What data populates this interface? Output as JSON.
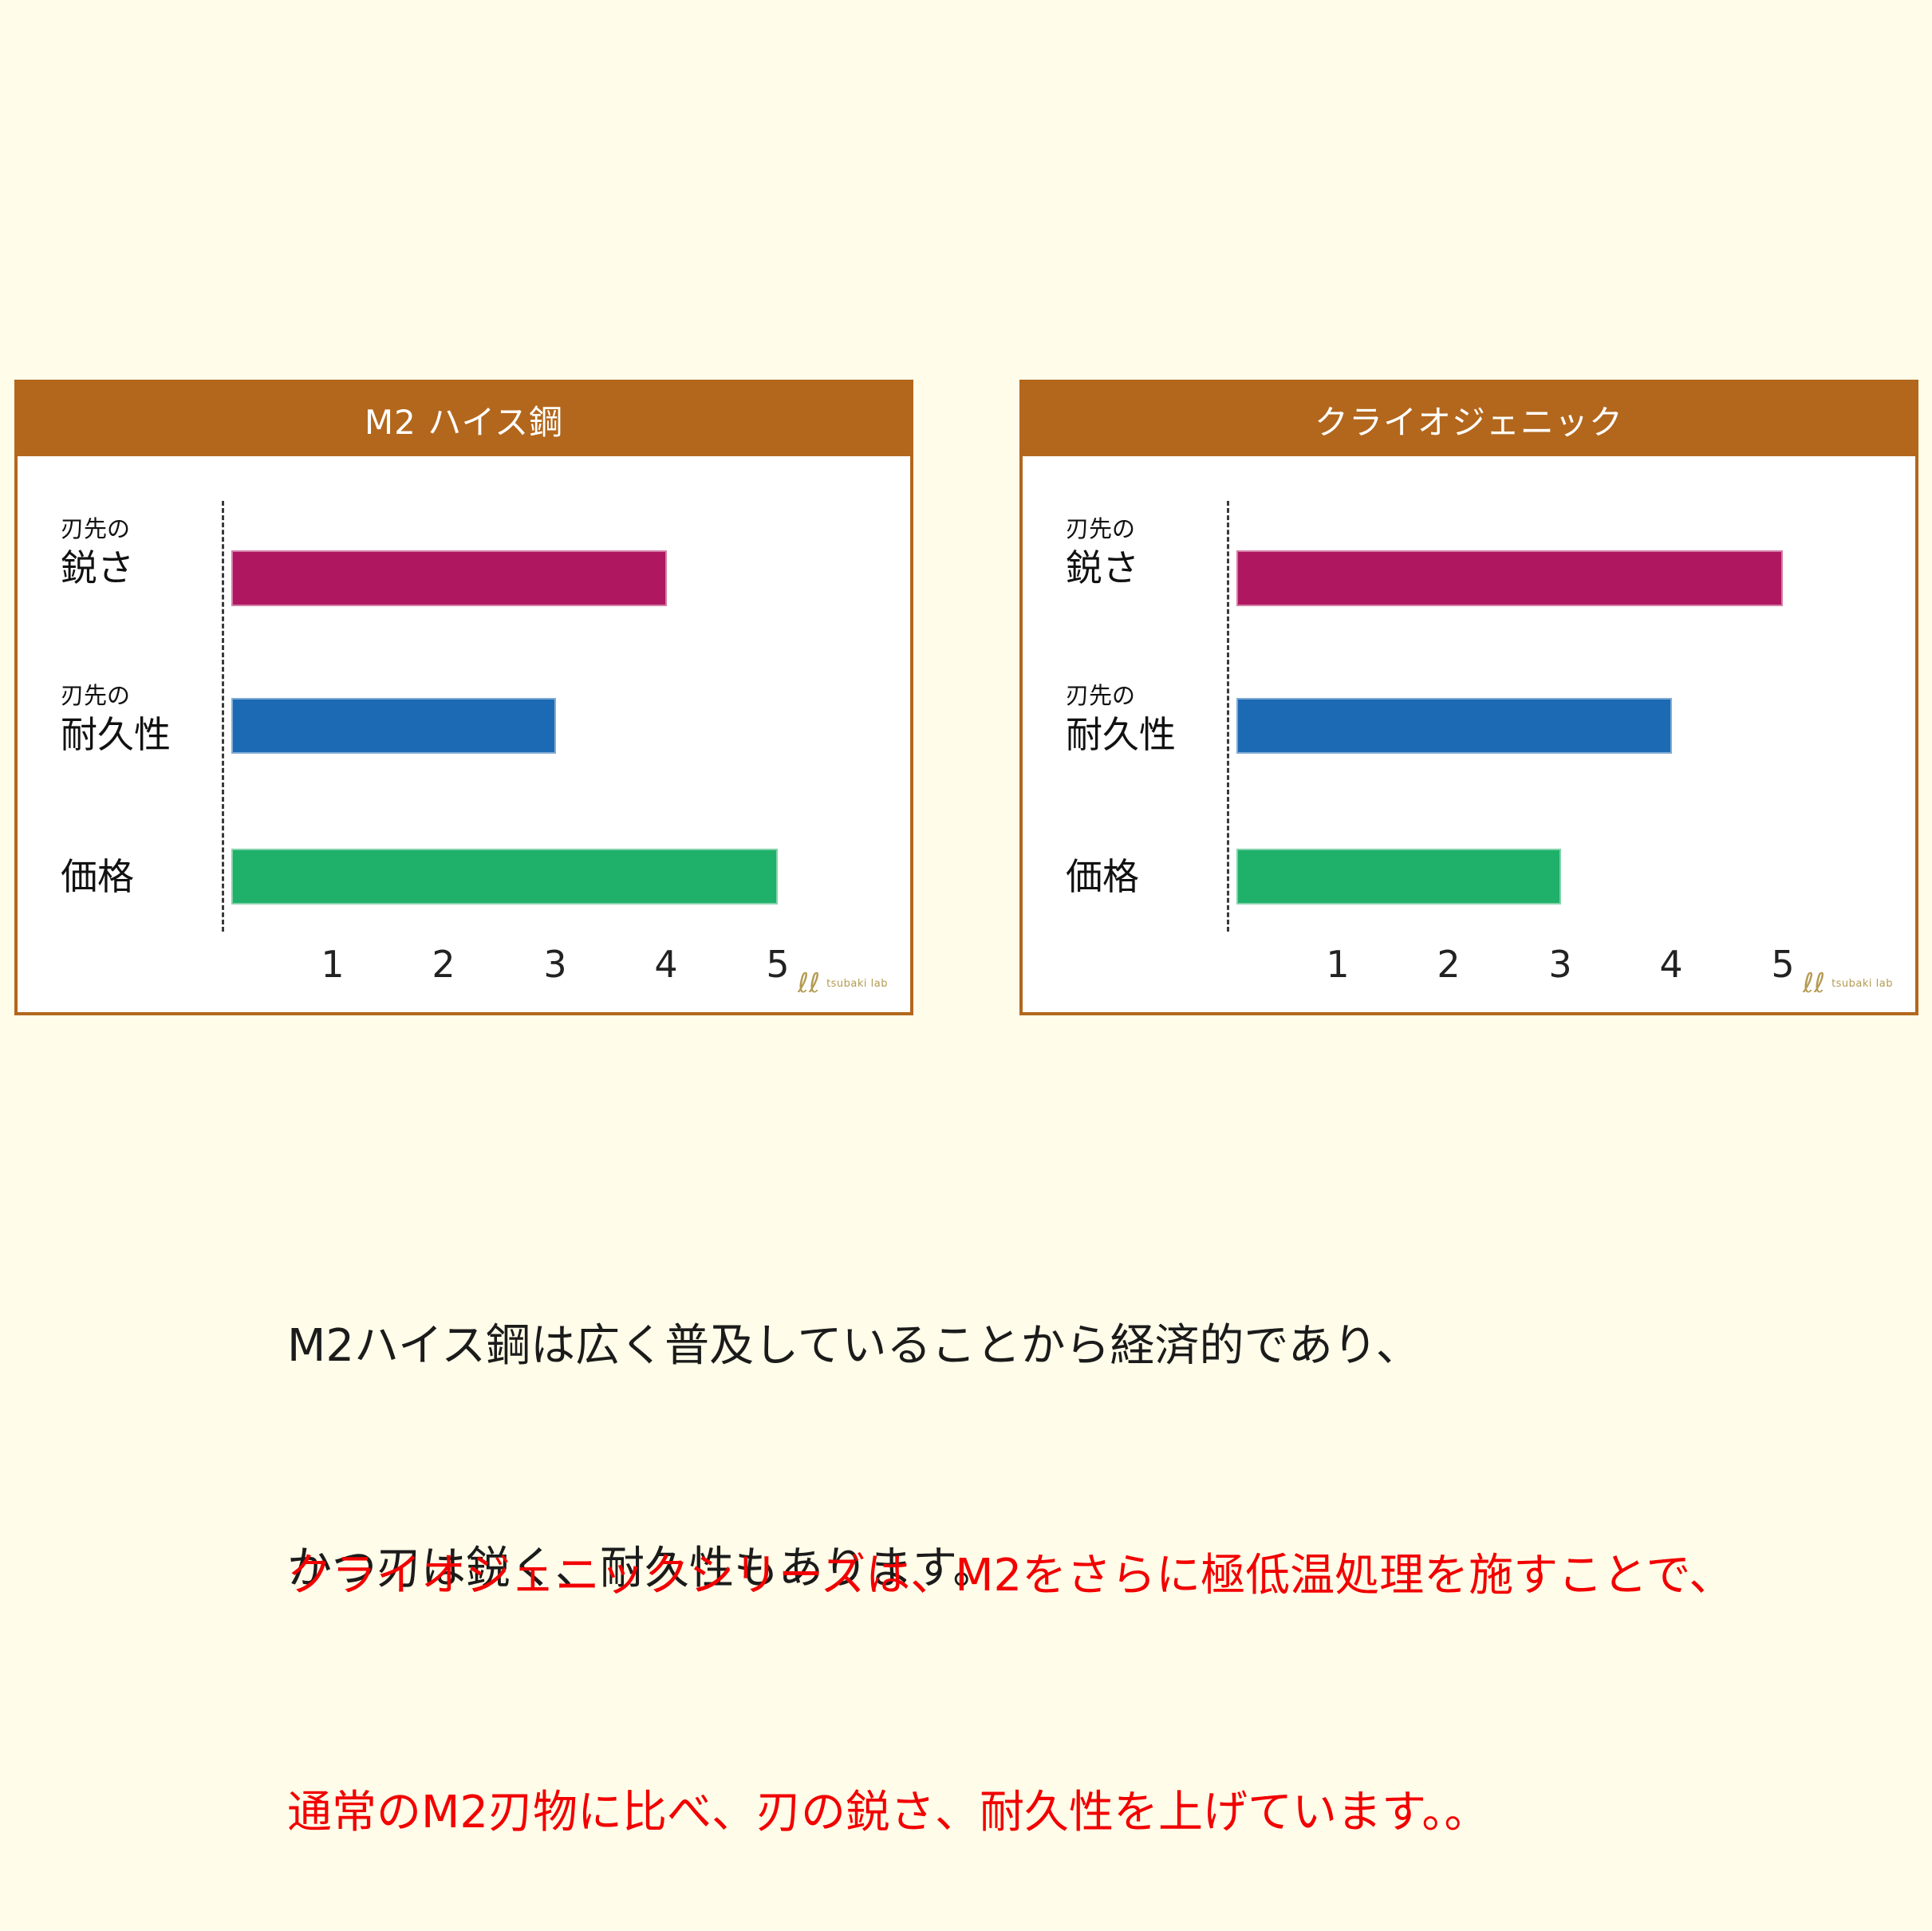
{
  "colors": {
    "background": "#FFFDE9",
    "panel_header": "#B2671D",
    "panel_border": "#B2671D",
    "bar_sharpness": "#B01761",
    "bar_durability": "#1D6AB4",
    "bar_price": "#1FB069",
    "axis_dashed_line": "#3A3A3A",
    "caption_black": "#1B1B1B",
    "caption_red": "#F20000",
    "logo_gold": "#B49B52"
  },
  "charts": [
    {
      "title": "M2 ハイス鋼",
      "rows": [
        {
          "label_small": "刃先の",
          "label_big": "鋭さ"
        },
        {
          "label_small": "刃先の",
          "label_big": "耐久性"
        },
        {
          "label_big": "価格"
        }
      ],
      "x_ticks": [
        "1",
        "2",
        "3",
        "4",
        "5"
      ],
      "logo_mark": "ℓℓ",
      "logo_text": "tsubaki lab"
    },
    {
      "title": "クライオジェニック",
      "rows": [
        {
          "label_small": "刃先の",
          "label_big": "鋭さ"
        },
        {
          "label_small": "刃先の",
          "label_big": "耐久性"
        },
        {
          "label_big": "価格"
        }
      ],
      "x_ticks": [
        "1",
        "2",
        "3",
        "4",
        "5"
      ],
      "logo_mark": "ℓℓ",
      "logo_text": "tsubaki lab"
    }
  ],
  "chart_data": [
    {
      "type": "bar",
      "orientation": "horizontal",
      "title": "M2 ハイス鋼",
      "categories": [
        "刃先の鋭さ",
        "刃先の耐久性",
        "価格"
      ],
      "values": [
        4,
        3,
        5
      ],
      "colors": [
        "#B01761",
        "#1D6AB4",
        "#1FB069"
      ],
      "xlim": [
        0,
        5
      ],
      "x_ticks": [
        1,
        2,
        3,
        4,
        5
      ],
      "grid": false,
      "legend": false
    },
    {
      "type": "bar",
      "orientation": "horizontal",
      "title": "クライオジェニック",
      "categories": [
        "刃先の鋭さ",
        "刃先の耐久性",
        "価格"
      ],
      "values": [
        5,
        4,
        3
      ],
      "colors": [
        "#B01761",
        "#1D6AB4",
        "#1FB069"
      ],
      "xlim": [
        0,
        5
      ],
      "x_ticks": [
        1,
        2,
        3,
        4,
        5
      ],
      "grid": false,
      "legend": false
    }
  ],
  "captions": {
    "black": [
      "M2ハイス鋼は広く普及していることから経済的であり、",
      "かつ刃は鋭く、耐久性もあります。"
    ],
    "red": [
      "クライオジェニックシリーズは、M2をさらに極低温処理を施すことで、",
      "通常のM2刃物に比べ、刃の鋭さ、耐久性を上げています。。"
    ]
  }
}
